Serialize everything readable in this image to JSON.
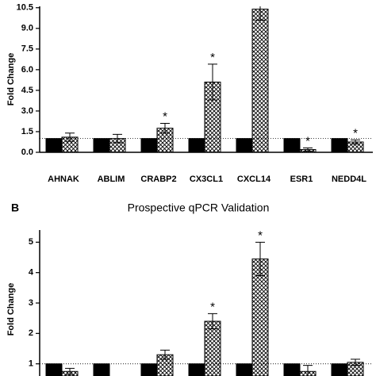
{
  "chart_data": [
    {
      "type": "bar",
      "ylabel": "Fold Change",
      "categories": [
        "AHNAK",
        "ABLIM",
        "CRABP2",
        "CX3CL1",
        "CXCL14",
        "ESR1",
        "NEDD4L"
      ],
      "series": [
        {
          "color": "#000000",
          "values": [
            1,
            1,
            1,
            1,
            1,
            1,
            1
          ]
        },
        {
          "color": "#000000",
          "pattern": "crosshatch",
          "values": [
            1.1,
            1.0,
            1.75,
            5.1,
            10.4,
            0.2,
            0.75
          ],
          "errors": [
            0.3,
            0.3,
            0.35,
            1.3,
            0.8,
            0.12,
            0.15
          ],
          "annotations": [
            null,
            null,
            "*",
            "*",
            null,
            "*",
            "*"
          ]
        }
      ],
      "ylim": [
        0,
        10.6
      ],
      "yticks": [
        {
          "value": 0,
          "label": "0.0"
        },
        {
          "value": 1.5,
          "label": "1.5"
        },
        {
          "value": 3,
          "label": "3.0"
        },
        {
          "value": 4.5,
          "label": "4.5"
        },
        {
          "value": 6,
          "label": "6.0"
        },
        {
          "value": 7.5,
          "label": "7.5"
        },
        {
          "value": 9,
          "label": "9.0"
        },
        {
          "value": 10.5,
          "label": "10.5"
        }
      ],
      "reference_line": 1
    },
    {
      "type": "bar",
      "panel_label": "B",
      "title": "Prospective qPCR Validation",
      "ylabel": "Fold Change",
      "categories": [
        null,
        null,
        null,
        null,
        null,
        null,
        null
      ],
      "series": [
        {
          "color": "#000000",
          "values": [
            1,
            1,
            1,
            1,
            1,
            1,
            1
          ]
        },
        {
          "color": "#000000",
          "pattern": "crosshatch",
          "values": [
            0.75,
            null,
            1.3,
            2.4,
            4.45,
            0.75,
            1.05
          ],
          "errors": [
            0.1,
            null,
            0.15,
            0.25,
            0.55,
            0.2,
            0.1
          ],
          "annotations": [
            null,
            null,
            null,
            "*",
            "*",
            null,
            null
          ]
        }
      ],
      "ylim": [
        0.6,
        5.4
      ],
      "yticks": [
        1,
        2,
        3,
        4,
        5
      ],
      "reference_line": 1
    }
  ]
}
